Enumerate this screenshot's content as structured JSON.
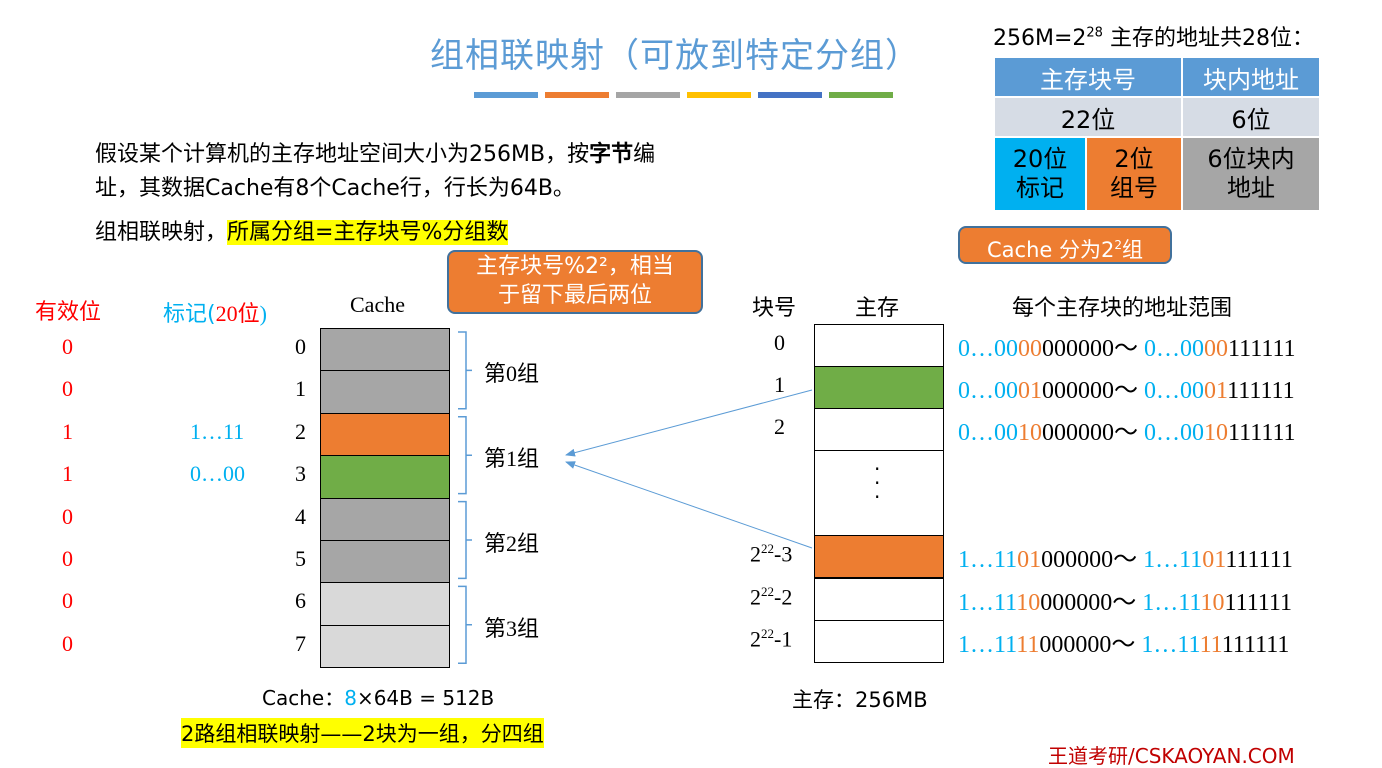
{
  "title": "组相联映射（可放到特定分组）",
  "title_bar_colors": [
    "#5b9bd5",
    "#ed7d31",
    "#a5a5a5",
    "#ffc000",
    "#4472c4",
    "#70ad47"
  ],
  "intro": {
    "line1_a": "假设某个计算机的主存地址空间大小为256MB，按",
    "line1_bold": "字节",
    "line1_b": "编",
    "line2": "址，其数据Cache有8个Cache行，行长为64B。"
  },
  "rule": {
    "prefix": "组相联映射，",
    "highlight": "所属分组=主存块号%分组数"
  },
  "callout_mod": {
    "line1": "主存块号%2²，相当",
    "line2": "于留下最后两位"
  },
  "address_format": {
    "heading_a": "256M=2",
    "heading_sup": "28",
    "heading_b": " 主存的地址共28位：",
    "header": [
      "主存块号",
      "块内地址"
    ],
    "bits": [
      "22位",
      "6位"
    ],
    "split": [
      {
        "line1": "20位",
        "line2": "标记"
      },
      {
        "line1": "2位",
        "line2": "组号"
      },
      {
        "line1": "6位块内",
        "line2": "地址"
      }
    ]
  },
  "callout_groups": {
    "text_a": "Cache 分为2",
    "sup": "2",
    "text_b": "组"
  },
  "cache": {
    "label_valid": "有效位",
    "label_tag_a": "标记(",
    "label_tag_b": "20位",
    "label_tag_c": ")",
    "label": "Cache",
    "lines": [
      {
        "index": "0",
        "valid": "0",
        "tag": "",
        "color": "#a6a6a6"
      },
      {
        "index": "1",
        "valid": "0",
        "tag": "",
        "color": "#a6a6a6"
      },
      {
        "index": "2",
        "valid": "1",
        "tag": "1…11",
        "color": "#ed7d31"
      },
      {
        "index": "3",
        "valid": "1",
        "tag": "0…00",
        "color": "#70ad47"
      },
      {
        "index": "4",
        "valid": "0",
        "tag": "",
        "color": "#a6a6a6"
      },
      {
        "index": "5",
        "valid": "0",
        "tag": "",
        "color": "#a6a6a6"
      },
      {
        "index": "6",
        "valid": "0",
        "tag": "",
        "color": "#d9d9d9"
      },
      {
        "index": "7",
        "valid": "0",
        "tag": "",
        "color": "#d9d9d9"
      }
    ],
    "groups": [
      "第0组",
      "第1组",
      "第2组",
      "第3组"
    ],
    "size_a": "Cache：",
    "size_n": "8",
    "size_b": "×64B = 512B"
  },
  "summary": "2路组相联映射——2块为一组，分四组",
  "memory": {
    "label_block": "块号",
    "label": "主存",
    "label_range": "每个主存块的地址范围",
    "size": "主存：256MB",
    "ellipsis": "·\n·\n·",
    "blocks": [
      {
        "no": "0",
        "color": "#ffffff",
        "range": [
          [
            "0…00",
            "00",
            "000000"
          ],
          [
            "0…00",
            "00",
            "111111"
          ]
        ]
      },
      {
        "no": "1",
        "color": "#70ad47",
        "range": [
          [
            "0…00",
            "01",
            "000000"
          ],
          [
            "0…00",
            "01",
            "111111"
          ]
        ]
      },
      {
        "no": "2",
        "color": "#ffffff",
        "range": [
          [
            "0…00",
            "10",
            "000000"
          ],
          [
            "0…00",
            "10",
            "111111"
          ]
        ]
      },
      {
        "no": "2²²-3",
        "color": "#ed7d31",
        "range": [
          [
            "1…11",
            "01",
            "000000"
          ],
          [
            "1…11",
            "01",
            "111111"
          ]
        ]
      },
      {
        "no": "2²²-2",
        "color": "#ffffff",
        "range": [
          [
            "1…11",
            "10",
            "000000"
          ],
          [
            "1…11",
            "10",
            "111111"
          ]
        ]
      },
      {
        "no": "2²²-1",
        "color": "#ffffff",
        "range": [
          [
            "1…11",
            "11",
            "000000"
          ],
          [
            "1…11",
            "11",
            "111111"
          ]
        ]
      }
    ]
  },
  "range_sep": "～",
  "footer": "王道考研/CSKAOYAN.COM"
}
